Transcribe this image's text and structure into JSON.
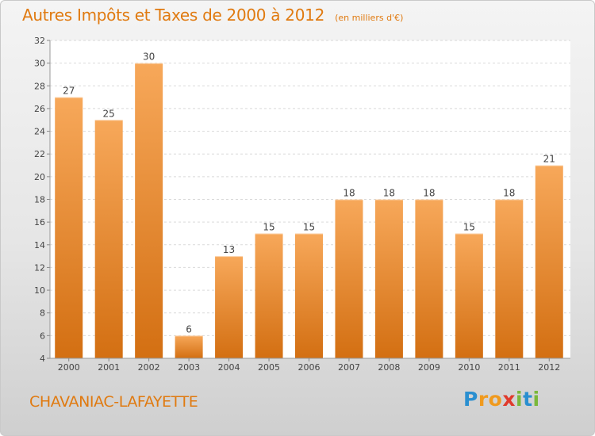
{
  "title": "Autres Impôts et Taxes de 2000 à 2012",
  "subtitle": "(en milliers d'€)",
  "commune": "CHAVANIAC-LAFAYETTE",
  "brand": {
    "letters": [
      "P",
      "r",
      "o",
      "x",
      "i",
      "t",
      "i"
    ],
    "colors": [
      "#2a8fd0",
      "#f09a1e",
      "#f09a1e",
      "#e03a2c",
      "#7ab83a",
      "#2a8fd0",
      "#7ab83a"
    ]
  },
  "colors": {
    "accent": "#e07a10",
    "bar_top": "#f7a85a",
    "bar_bottom": "#d36f12"
  },
  "chart_data": {
    "type": "bar",
    "title": "Autres Impôts et Taxes de 2000 à 2012",
    "subtitle": "(en milliers d'€)",
    "categories": [
      "2000",
      "2001",
      "2002",
      "2003",
      "2004",
      "2005",
      "2006",
      "2007",
      "2008",
      "2009",
      "2010",
      "2011",
      "2012"
    ],
    "values": [
      27,
      25,
      30,
      6,
      13,
      15,
      15,
      18,
      18,
      18,
      15,
      18,
      21
    ],
    "ylim": [
      4,
      32
    ],
    "yticks": [
      4,
      6,
      8,
      10,
      12,
      14,
      16,
      18,
      20,
      22,
      24,
      26,
      28,
      30,
      32
    ],
    "grid": true
  }
}
